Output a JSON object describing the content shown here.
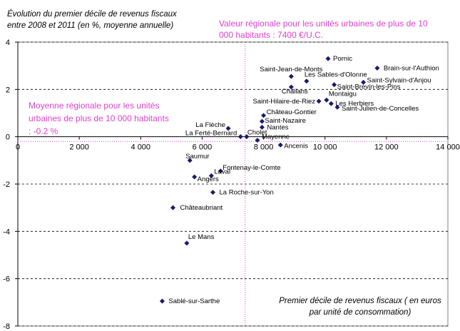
{
  "chart_data": {
    "type": "scatter",
    "title": "Évolution du premier décile de revenus fiscaux entre 2008 et 2011 (en %, moyenne annuelle)",
    "xlabel": "Premier décile de revenus fiscaux ( en euros par unité de consommation)",
    "ylabel": "",
    "xlim": [
      0,
      14000
    ],
    "ylim": [
      -8,
      4
    ],
    "xticks": [
      0,
      2000,
      4000,
      6000,
      8000,
      10000,
      12000,
      14000
    ],
    "xtick_labels": [
      "0",
      "2 000",
      "4 000",
      "6 000",
      "8 000",
      "10 000",
      "12 000",
      "14 000"
    ],
    "yticks": [
      -8,
      -6,
      -4,
      -2,
      0,
      2,
      4
    ],
    "ytick_labels": [
      "-8",
      "-6",
      "-4",
      "-2",
      "0",
      "2",
      "4"
    ],
    "grid": "horizontal dashed",
    "point_color": "#1a1a6e",
    "annotation_color": "#e040d0",
    "reference_lines": [
      {
        "axis": "x",
        "value": 7400,
        "label": "Valeur régionale pour les unités urbaines de plus de 10 000 habitants : 7400 €/U.C."
      },
      {
        "axis": "y",
        "value": -0.2,
        "label": "Moyenne régionale pour les unités urbaines de plus de 10 000 habitants : -0.2 %"
      }
    ],
    "points": [
      {
        "name": "Pornic",
        "x": 10100,
        "y": 3.3
      },
      {
        "name": "Brain-sur-l'Authion",
        "x": 11700,
        "y": 2.9
      },
      {
        "name": "Saint-Jean-de-Monts",
        "x": 8900,
        "y": 2.55
      },
      {
        "name": "Les Sables-d'Olonne",
        "x": 9400,
        "y": 2.35
      },
      {
        "name": "Saint-Sylvain-d'Anjou",
        "x": 11250,
        "y": 2.3
      },
      {
        "name": "Saint-Brevin-les-Pins",
        "x": 10300,
        "y": 2.2
      },
      {
        "name": "Challans",
        "x": 8900,
        "y": 2.1
      },
      {
        "name": "Montaigu",
        "x": 10050,
        "y": 1.55
      },
      {
        "name": "Saint-Hilaire-de-Riez",
        "x": 9800,
        "y": 1.5
      },
      {
        "name": "Les Herbiers",
        "x": 10200,
        "y": 1.4
      },
      {
        "name": "Saint-Julien-de-Concelles",
        "x": 10400,
        "y": 1.25
      },
      {
        "name": "Château-Gontier",
        "x": 8000,
        "y": 0.9
      },
      {
        "name": "Saint-Nazaire",
        "x": 7950,
        "y": 0.65
      },
      {
        "name": "Nantes",
        "x": 7950,
        "y": 0.4
      },
      {
        "name": "La Flèche",
        "x": 6850,
        "y": 0.35
      },
      {
        "name": "La Ferté-Bernard",
        "x": 7250,
        "y": 0.0
      },
      {
        "name": "Cholet",
        "x": 7450,
        "y": 0.0
      },
      {
        "name": "Mayenne",
        "x": 7800,
        "y": -0.15
      },
      {
        "name": "Ancenis",
        "x": 8550,
        "y": -0.35
      },
      {
        "name": "Saumur",
        "x": 5600,
        "y": -1.0
      },
      {
        "name": "Fontenay-le-Comte",
        "x": 6600,
        "y": -1.45
      },
      {
        "name": "Laval",
        "x": 6300,
        "y": -1.65
      },
      {
        "name": "Angers",
        "x": 5750,
        "y": -1.7
      },
      {
        "name": "La Roche-sur-Yon",
        "x": 6350,
        "y": -2.35
      },
      {
        "name": "Châteaubriant",
        "x": 5050,
        "y": -3.0
      },
      {
        "name": "Le Mans",
        "x": 5500,
        "y": -4.5
      },
      {
        "name": "Sablé-sur-Sarthe",
        "x": 4700,
        "y": -6.95
      }
    ]
  }
}
